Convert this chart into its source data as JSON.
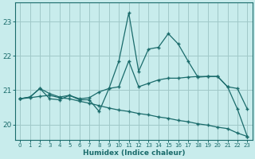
{
  "xlabel": "Humidex (Indice chaleur)",
  "background_color": "#c8ecec",
  "grid_color": "#a0c8c8",
  "line_color": "#1a6b6b",
  "xlim": [
    -0.5,
    23.5
  ],
  "ylim": [
    19.55,
    23.55
  ],
  "yticks": [
    20,
    21,
    22,
    23
  ],
  "xticks": [
    0,
    1,
    2,
    3,
    4,
    5,
    6,
    7,
    8,
    9,
    10,
    11,
    12,
    13,
    14,
    15,
    16,
    17,
    18,
    19,
    20,
    21,
    22,
    23
  ],
  "series1_x": [
    0,
    1,
    2,
    3,
    4,
    5,
    6,
    7,
    8,
    9,
    10,
    11,
    12,
    13,
    14,
    15,
    16,
    17,
    18,
    19,
    20,
    21,
    22,
    23
  ],
  "series1_y": [
    20.75,
    20.8,
    21.05,
    20.9,
    20.8,
    20.85,
    20.75,
    20.78,
    20.95,
    21.05,
    21.1,
    21.85,
    21.1,
    21.2,
    21.3,
    21.35,
    21.35,
    21.38,
    21.4,
    21.4,
    21.4,
    21.1,
    21.05,
    20.45
  ],
  "series2_x": [
    0,
    1,
    2,
    3,
    4,
    5,
    6,
    7,
    8,
    9,
    10,
    11,
    12,
    13,
    14,
    15,
    16,
    17,
    18,
    19,
    20,
    21,
    22,
    23
  ],
  "series2_y": [
    20.75,
    20.8,
    21.05,
    20.75,
    20.72,
    20.85,
    20.72,
    20.72,
    20.38,
    21.05,
    21.85,
    23.25,
    21.55,
    22.2,
    22.25,
    22.65,
    22.35,
    21.85,
    21.38,
    21.4,
    21.4,
    21.1,
    20.45,
    19.65
  ],
  "series3_x": [
    0,
    1,
    2,
    3,
    4,
    5,
    6,
    7,
    8,
    9,
    10,
    11,
    12,
    13,
    14,
    15,
    16,
    17,
    18,
    19,
    20,
    21,
    22,
    23
  ],
  "series3_y": [
    20.75,
    20.78,
    20.82,
    20.85,
    20.78,
    20.75,
    20.68,
    20.62,
    20.55,
    20.48,
    20.42,
    20.38,
    20.32,
    20.28,
    20.22,
    20.18,
    20.12,
    20.08,
    20.02,
    19.98,
    19.92,
    19.88,
    19.75,
    19.65
  ]
}
